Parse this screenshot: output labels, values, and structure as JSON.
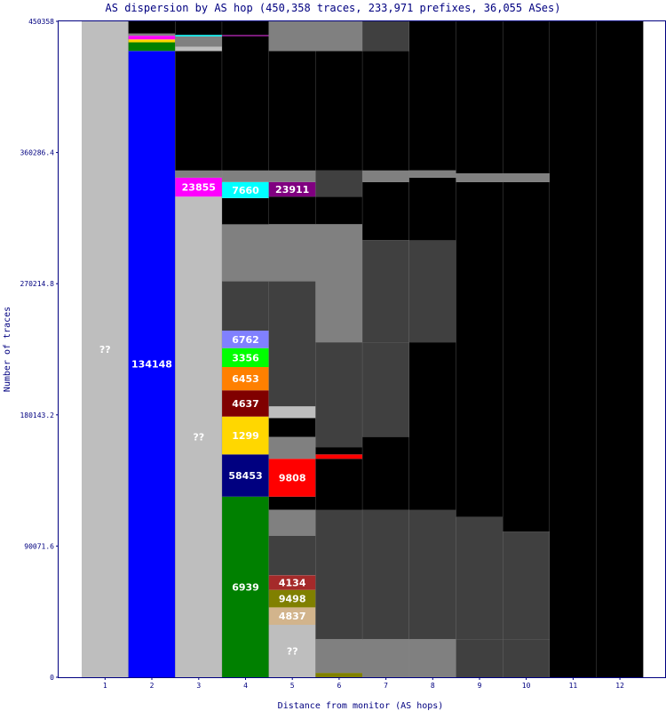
{
  "chart_data": {
    "type": "bar",
    "title": "AS dispersion by AS hop (450,358 traces, 233,971 prefixes, 36,055 ASes)",
    "xlabel": "Distance from monitor (AS hops)",
    "ylabel": "Number of traces",
    "ylim": [
      0,
      450358
    ],
    "yticks": [
      "0",
      "90071.6",
      "180143.2",
      "270214.8",
      "360286.4",
      "450358"
    ],
    "categories": [
      "1",
      "2",
      "3",
      "4",
      "5",
      "6",
      "7",
      "8",
      "9",
      "10",
      "11",
      "12"
    ],
    "colors": {
      "unknown": "#bebebe",
      "mixed": "#808080",
      "black": "#000000",
      "blue": "#0000ff",
      "green": "#008000",
      "magenta": "#ff00ff",
      "cyan": "#00ffff",
      "purple": "#800080",
      "periwinkle": "#8080ff",
      "lime": "#00ff00",
      "orange": "#ff8000",
      "maroon": "#800000",
      "gold": "#ffd700",
      "navy": "#000080",
      "red": "#ff0000",
      "brown": "#a52a2a",
      "olive": "#808000",
      "tan": "#d2b48c"
    },
    "hops": [
      {
        "hop": "1",
        "segments": [
          {
            "label": "??",
            "start": 0,
            "end": 450358,
            "color": "#bebebe"
          }
        ]
      },
      {
        "hop": "2",
        "segments": [
          {
            "label": "134148",
            "start": 0,
            "end": 430000,
            "color": "#0000ff"
          },
          {
            "label": "",
            "start": 430000,
            "end": 436000,
            "color": "#008000"
          },
          {
            "label": "",
            "start": 436000,
            "end": 438000,
            "color": "#ffd700"
          },
          {
            "label": "",
            "start": 438000,
            "end": 440500,
            "color": "#ff00ff"
          },
          {
            "label": "",
            "start": 440500,
            "end": 442000,
            "color": "#808080"
          },
          {
            "label": "",
            "start": 442000,
            "end": 450358,
            "color": "#000000"
          }
        ]
      },
      {
        "hop": "3",
        "segments": [
          {
            "label": "??",
            "start": 0,
            "end": 330000,
            "color": "#bebebe"
          },
          {
            "label": "23855",
            "start": 330000,
            "end": 343000,
            "color": "#ff00ff"
          },
          {
            "label": "",
            "start": 343000,
            "end": 348000,
            "color": "#808080"
          },
          {
            "label": "",
            "start": 348000,
            "end": 430000,
            "color": "#000000"
          },
          {
            "label": "",
            "start": 430000,
            "end": 433000,
            "color": "#bebebe"
          },
          {
            "label": "",
            "start": 433000,
            "end": 440000,
            "color": "#808080"
          },
          {
            "label": "",
            "start": 440000,
            "end": 441000,
            "color": "#00ffff"
          },
          {
            "label": "",
            "start": 441000,
            "end": 450358,
            "color": "#000000"
          }
        ]
      },
      {
        "hop": "4",
        "segments": [
          {
            "label": "6939",
            "start": 0,
            "end": 124000,
            "color": "#008000"
          },
          {
            "label": "58453",
            "start": 124000,
            "end": 153000,
            "color": "#000080"
          },
          {
            "label": "1299",
            "start": 153000,
            "end": 179000,
            "color": "#ffd700"
          },
          {
            "label": "4637",
            "start": 179000,
            "end": 197000,
            "color": "#800000"
          },
          {
            "label": "6453",
            "start": 197000,
            "end": 213000,
            "color": "#ff8000"
          },
          {
            "label": "3356",
            "start": 213000,
            "end": 226000,
            "color": "#00ff00"
          },
          {
            "label": "6762",
            "start": 226000,
            "end": 238000,
            "color": "#8080ff"
          },
          {
            "label": "",
            "start": 238000,
            "end": 272000,
            "color": "#404040"
          },
          {
            "label": "",
            "start": 272000,
            "end": 311000,
            "color": "#808080"
          },
          {
            "label": "",
            "start": 311000,
            "end": 329000,
            "color": "#000000"
          },
          {
            "label": "7660",
            "start": 329000,
            "end": 340000,
            "color": "#00ffff"
          },
          {
            "label": "",
            "start": 340000,
            "end": 348000,
            "color": "#808080"
          },
          {
            "label": "",
            "start": 348000,
            "end": 440000,
            "color": "#000000"
          },
          {
            "label": "",
            "start": 440000,
            "end": 441000,
            "color": "#800080"
          },
          {
            "label": "",
            "start": 441000,
            "end": 450358,
            "color": "#000000"
          }
        ]
      },
      {
        "hop": "5",
        "segments": [
          {
            "label": "??",
            "start": 0,
            "end": 36000,
            "color": "#bebebe"
          },
          {
            "label": "4837",
            "start": 36000,
            "end": 48000,
            "color": "#d2b48c"
          },
          {
            "label": "9498",
            "start": 48000,
            "end": 60000,
            "color": "#808000"
          },
          {
            "label": "4134",
            "start": 60000,
            "end": 70000,
            "color": "#a52a2a"
          },
          {
            "label": "",
            "start": 70000,
            "end": 97000,
            "color": "#404040"
          },
          {
            "label": "",
            "start": 97000,
            "end": 115000,
            "color": "#808080"
          },
          {
            "label": "",
            "start": 115000,
            "end": 124000,
            "color": "#000000"
          },
          {
            "label": "9808",
            "start": 124000,
            "end": 150000,
            "color": "#ff0000"
          },
          {
            "label": "",
            "start": 150000,
            "end": 165000,
            "color": "#808080"
          },
          {
            "label": "",
            "start": 165000,
            "end": 178000,
            "color": "#000000"
          },
          {
            "label": "",
            "start": 178000,
            "end": 186000,
            "color": "#bebebe"
          },
          {
            "label": "",
            "start": 186000,
            "end": 272000,
            "color": "#404040"
          },
          {
            "label": "",
            "start": 272000,
            "end": 311000,
            "color": "#808080"
          },
          {
            "label": "",
            "start": 311000,
            "end": 330000,
            "color": "#000000"
          },
          {
            "label": "23911",
            "start": 330000,
            "end": 340000,
            "color": "#800080"
          },
          {
            "label": "",
            "start": 340000,
            "end": 348000,
            "color": "#808080"
          },
          {
            "label": "",
            "start": 348000,
            "end": 430000,
            "color": "#000000"
          },
          {
            "label": "",
            "start": 430000,
            "end": 450358,
            "color": "#808080"
          }
        ]
      },
      {
        "hop": "6",
        "segments": [
          {
            "label": "",
            "start": 0,
            "end": 3000,
            "color": "#808000"
          },
          {
            "label": "",
            "start": 3000,
            "end": 26000,
            "color": "#808080"
          },
          {
            "label": "",
            "start": 26000,
            "end": 115000,
            "color": "#404040"
          },
          {
            "label": "",
            "start": 115000,
            "end": 150000,
            "color": "#000000"
          },
          {
            "label": "",
            "start": 150000,
            "end": 153000,
            "color": "#ff0000"
          },
          {
            "label": "",
            "start": 153000,
            "end": 158000,
            "color": "#000000"
          },
          {
            "label": "",
            "start": 158000,
            "end": 230000,
            "color": "#404040"
          },
          {
            "label": "",
            "start": 230000,
            "end": 311000,
            "color": "#808080"
          },
          {
            "label": "",
            "start": 311000,
            "end": 330000,
            "color": "#000000"
          },
          {
            "label": "",
            "start": 330000,
            "end": 348000,
            "color": "#404040"
          },
          {
            "label": "",
            "start": 348000,
            "end": 430000,
            "color": "#000000"
          },
          {
            "label": "",
            "start": 430000,
            "end": 450358,
            "color": "#808080"
          }
        ]
      },
      {
        "hop": "7",
        "segments": [
          {
            "label": "",
            "start": 0,
            "end": 26000,
            "color": "#808080"
          },
          {
            "label": "",
            "start": 26000,
            "end": 115000,
            "color": "#404040"
          },
          {
            "label": "",
            "start": 115000,
            "end": 165000,
            "color": "#000000"
          },
          {
            "label": "",
            "start": 165000,
            "end": 230000,
            "color": "#404040"
          },
          {
            "label": "",
            "start": 230000,
            "end": 300000,
            "color": "#404040"
          },
          {
            "label": "",
            "start": 300000,
            "end": 340000,
            "color": "#000000"
          },
          {
            "label": "",
            "start": 340000,
            "end": 348000,
            "color": "#808080"
          },
          {
            "label": "",
            "start": 348000,
            "end": 430000,
            "color": "#000000"
          },
          {
            "label": "",
            "start": 430000,
            "end": 450358,
            "color": "#404040"
          }
        ]
      },
      {
        "hop": "8",
        "segments": [
          {
            "label": "",
            "start": 0,
            "end": 26000,
            "color": "#808080"
          },
          {
            "label": "",
            "start": 26000,
            "end": 115000,
            "color": "#404040"
          },
          {
            "label": "",
            "start": 115000,
            "end": 230000,
            "color": "#000000"
          },
          {
            "label": "",
            "start": 230000,
            "end": 300000,
            "color": "#404040"
          },
          {
            "label": "",
            "start": 300000,
            "end": 343000,
            "color": "#000000"
          },
          {
            "label": "",
            "start": 343000,
            "end": 348000,
            "color": "#808080"
          },
          {
            "label": "",
            "start": 348000,
            "end": 450358,
            "color": "#000000"
          }
        ]
      },
      {
        "hop": "9",
        "segments": [
          {
            "label": "",
            "start": 0,
            "end": 26000,
            "color": "#404040"
          },
          {
            "label": "",
            "start": 26000,
            "end": 110000,
            "color": "#404040"
          },
          {
            "label": "",
            "start": 110000,
            "end": 340000,
            "color": "#000000"
          },
          {
            "label": "",
            "start": 340000,
            "end": 346000,
            "color": "#808080"
          },
          {
            "label": "",
            "start": 346000,
            "end": 450358,
            "color": "#000000"
          }
        ]
      },
      {
        "hop": "10",
        "segments": [
          {
            "label": "",
            "start": 0,
            "end": 26000,
            "color": "#404040"
          },
          {
            "label": "",
            "start": 26000,
            "end": 100000,
            "color": "#404040"
          },
          {
            "label": "",
            "start": 100000,
            "end": 340000,
            "color": "#000000"
          },
          {
            "label": "",
            "start": 340000,
            "end": 346000,
            "color": "#808080"
          },
          {
            "label": "",
            "start": 346000,
            "end": 450358,
            "color": "#000000"
          }
        ]
      },
      {
        "hop": "11",
        "segments": [
          {
            "label": "",
            "start": 0,
            "end": 450358,
            "color": "#000000"
          }
        ]
      },
      {
        "hop": "12",
        "segments": [
          {
            "label": "",
            "start": 0,
            "end": 450358,
            "color": "#000000"
          }
        ]
      }
    ]
  }
}
